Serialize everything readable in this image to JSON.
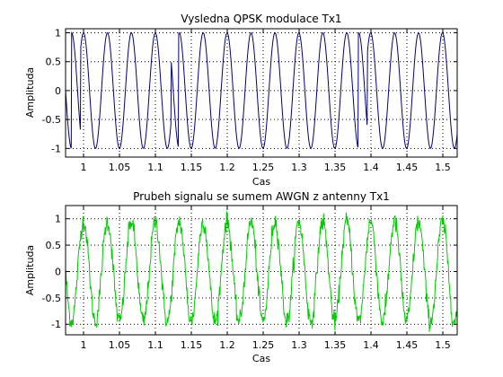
{
  "chart_data": [
    {
      "type": "line",
      "title": "Vysledna QPSK modulace Tx1",
      "xlabel": "Cas",
      "ylabel": "Amplituda",
      "xlim": [
        0.975,
        1.52
      ],
      "ylim": [
        -1.15,
        1.07
      ],
      "xticks": [
        "1",
        "1.05",
        "1.1",
        "1.15",
        "1.2",
        "1.25",
        "1.3",
        "1.35",
        "1.4",
        "1.45",
        "1.5"
      ],
      "yticks": [
        "-1",
        "-0.5",
        "0",
        "0.5",
        "1"
      ],
      "grid": true,
      "series": [
        {
          "color": "#000080",
          "carrier_period": 0.0333,
          "amplitude": 1.0,
          "phase_jumps_x": [
            0.983,
            0.996,
            1.122,
            1.132,
            1.382,
            1.395
          ],
          "x_range": [
            0.975,
            1.52
          ]
        }
      ]
    },
    {
      "type": "line",
      "title": "Prubeh signalu se sumem AWGN z antenny Tx1",
      "xlabel": "Cas",
      "ylabel": "Amplituda",
      "xlim": [
        0.975,
        1.52
      ],
      "ylim": [
        -1.2,
        1.25
      ],
      "xticks": [
        "1",
        "1.05",
        "1.1",
        "1.15",
        "1.2",
        "1.25",
        "1.3",
        "1.35",
        "1.4",
        "1.45",
        "1.5"
      ],
      "yticks": [
        "-1",
        "-0.5",
        "0",
        "0.5",
        "1"
      ],
      "grid": true,
      "series": [
        {
          "color": "#00cc00",
          "carrier_period": 0.0333,
          "amplitude": 0.95,
          "noise_std": 0.09,
          "x_range": [
            0.975,
            1.52
          ]
        }
      ]
    }
  ]
}
